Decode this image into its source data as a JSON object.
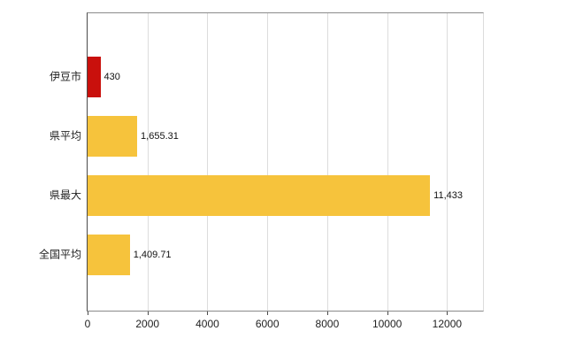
{
  "chart_data": {
    "type": "bar",
    "orientation": "horizontal",
    "title": "",
    "xlabel": "",
    "ylabel": "",
    "categories": [
      "伊豆市",
      "県平均",
      "県最大",
      "全国平均"
    ],
    "values": [
      430,
      1655.31,
      11433,
      1409.71
    ],
    "value_labels": [
      "430",
      "1,655.31",
      "11,433",
      "1,409.71"
    ],
    "bar_colors": [
      "#c9100c",
      "#f6c33c",
      "#f6c33c",
      "#f6c33c"
    ],
    "xlim": [
      0,
      13200
    ],
    "x_ticks": [
      0,
      2000,
      4000,
      6000,
      8000,
      10000,
      12000
    ],
    "x_tick_labels": [
      "0",
      "2000",
      "4000",
      "6000",
      "8000",
      "10000",
      "12000"
    ],
    "grid": true,
    "legend_position": "none"
  },
  "style_colors": {
    "highlight_bar": "#c9100c",
    "default_bar": "#f6c33c",
    "gridline": "#dcdcdc",
    "axis_line": "#4a4a4a",
    "text": "#222222"
  }
}
